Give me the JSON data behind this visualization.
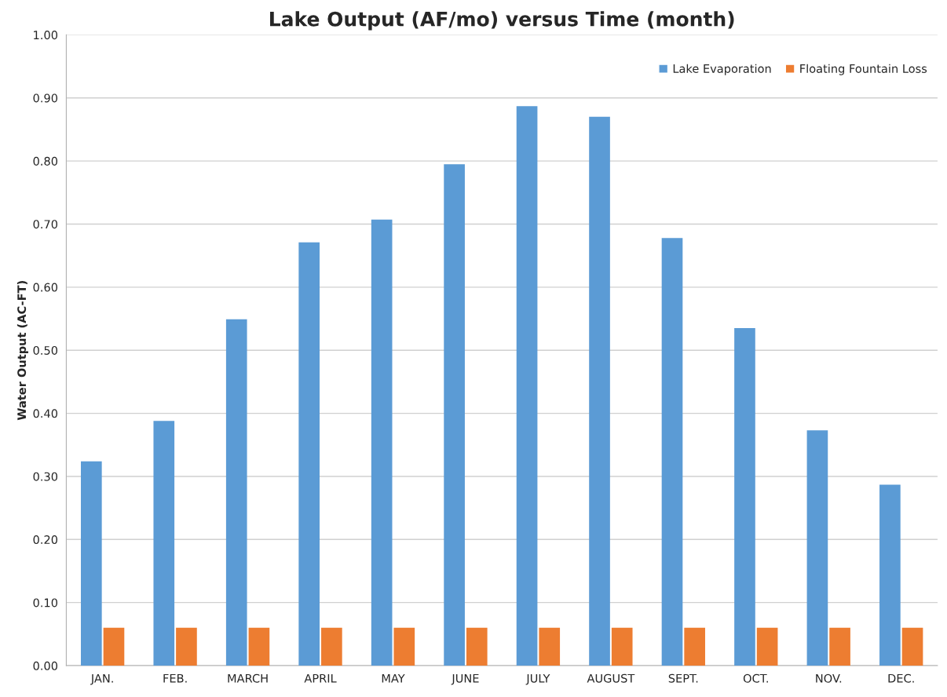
{
  "chart_data": {
    "type": "bar",
    "title": "Lake Output (AF/mo) versus Time (month)",
    "ylabel": "Water Output (AC-FT)",
    "categories": [
      "JAN.",
      "FEB.",
      "MARCH",
      "APRIL",
      "MAY",
      "JUNE",
      "JULY",
      "AUGUST",
      "SEPT.",
      "OCT.",
      "NOV.",
      "DEC."
    ],
    "series": [
      {
        "name": "Lake Evaporation",
        "color": "#5b9bd5",
        "values": [
          0.324,
          0.388,
          0.549,
          0.671,
          0.707,
          0.795,
          0.887,
          0.87,
          0.678,
          0.535,
          0.373,
          0.287
        ]
      },
      {
        "name": "Floating Fountain Loss",
        "color": "#ed7d31",
        "values": [
          0.06,
          0.06,
          0.06,
          0.06,
          0.06,
          0.06,
          0.06,
          0.06,
          0.06,
          0.06,
          0.06,
          0.06
        ]
      }
    ],
    "ylim": [
      0,
      1.0
    ],
    "yticks": [
      {
        "value": 0,
        "label": "0.00"
      },
      {
        "value": 0.1,
        "label": "0.10"
      },
      {
        "value": 0.2,
        "label": "0.20"
      },
      {
        "value": 0.3,
        "label": "0.30"
      },
      {
        "value": 0.4,
        "label": "0.40"
      },
      {
        "value": 0.5,
        "label": "0.50"
      },
      {
        "value": 0.6,
        "label": "0.60"
      },
      {
        "value": 0.7,
        "label": "0.70"
      },
      {
        "value": 0.8,
        "label": "0.80"
      },
      {
        "value": 0.9,
        "label": "0.90"
      },
      {
        "value": 1.0,
        "label": "1.00"
      }
    ],
    "grid": "y",
    "legend": "top right"
  }
}
